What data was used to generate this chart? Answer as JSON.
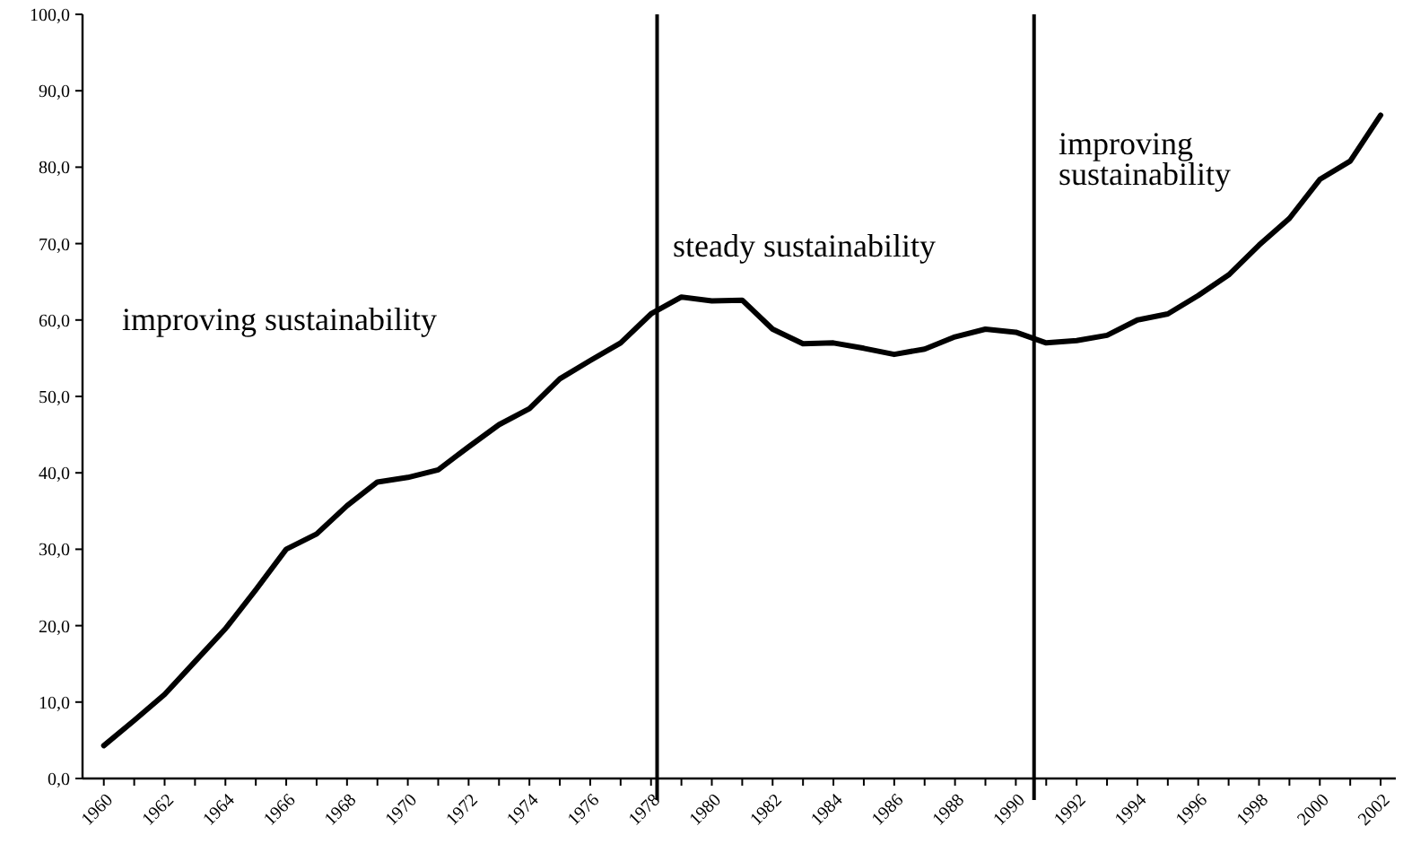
{
  "chart_data": {
    "type": "line",
    "x": [
      1960,
      1961,
      1962,
      1963,
      1964,
      1965,
      1966,
      1967,
      1968,
      1969,
      1970,
      1971,
      1972,
      1973,
      1974,
      1975,
      1976,
      1977,
      1978,
      1979,
      1980,
      1981,
      1982,
      1983,
      1984,
      1985,
      1986,
      1987,
      1988,
      1989,
      1990,
      1991,
      1992,
      1993,
      1994,
      1995,
      1996,
      1997,
      1998,
      1999,
      2000,
      2001,
      2002
    ],
    "series": [
      {
        "color": "#000000",
        "values": [
          4.3,
          7.6,
          11.0,
          15.3,
          19.6,
          24.7,
          30.0,
          32.0,
          35.7,
          38.8,
          39.4,
          40.4,
          43.4,
          46.3,
          48.4,
          52.3,
          54.7,
          57.0,
          60.8,
          63.0,
          62.5,
          62.6,
          58.8,
          56.9,
          57.0,
          56.3,
          55.5,
          56.2,
          57.8,
          58.8,
          58.4,
          57.0,
          57.3,
          58.0,
          60.0,
          60.8,
          63.2,
          65.9,
          69.8,
          73.3,
          78.4,
          80.8,
          86.8
        ]
      }
    ],
    "xlim": [
      1959.3,
      2002.5
    ],
    "xticks": [
      1960,
      {
        "value": 1961,
        "label": null
      },
      1962,
      {
        "value": 1963,
        "label": null
      },
      1964,
      {
        "value": 1965,
        "label": null
      },
      1966,
      {
        "value": 1967,
        "label": null
      },
      1968,
      {
        "value": 1969,
        "label": null
      },
      1970,
      {
        "value": 1971,
        "label": null
      },
      1972,
      {
        "value": 1973,
        "label": null
      },
      1974,
      {
        "value": 1975,
        "label": null
      },
      1976,
      {
        "value": 1977,
        "label": null
      },
      1978,
      {
        "value": 1979,
        "label": null
      },
      1980,
      {
        "value": 1981,
        "label": null
      },
      1982,
      {
        "value": 1983,
        "label": null
      },
      1984,
      {
        "value": 1985,
        "label": null
      },
      1986,
      {
        "value": 1987,
        "label": null
      },
      1988,
      {
        "value": 1989,
        "label": null
      },
      1990,
      {
        "value": 1991,
        "label": null
      },
      1992,
      {
        "value": 1993,
        "label": null
      },
      1994,
      {
        "value": 1995,
        "label": null
      },
      1996,
      {
        "value": 1997,
        "label": null
      },
      1998,
      {
        "value": 1999,
        "label": null
      },
      2000,
      {
        "value": 2001,
        "label": null
      },
      2002
    ],
    "ylim": [
      0,
      100
    ],
    "yticks": [
      {
        "value": 0,
        "label": "0,0"
      },
      {
        "value": 10,
        "label": "10,0"
      },
      {
        "value": 20,
        "label": "20,0"
      },
      {
        "value": 30,
        "label": "30,0"
      },
      {
        "value": 40,
        "label": "40,0"
      },
      {
        "value": 50,
        "label": "50,0"
      },
      {
        "value": 60,
        "label": "60,0"
      },
      {
        "value": 70,
        "label": "70,0"
      },
      {
        "value": 80,
        "label": "80,0"
      },
      {
        "value": 90,
        "label": "90,0"
      },
      {
        "value": 100,
        "label": "100,0"
      }
    ],
    "ref_lines": [
      {
        "axis": "x",
        "value": 1978.2,
        "color": "#000000"
      },
      {
        "axis": "x",
        "value": 1990.6,
        "color": "#000000"
      }
    ],
    "annotations": [
      "improving sustainability",
      "steady sustainability",
      "improving sustainability"
    ],
    "grid": false,
    "marker": "none",
    "line_style": "solid"
  }
}
